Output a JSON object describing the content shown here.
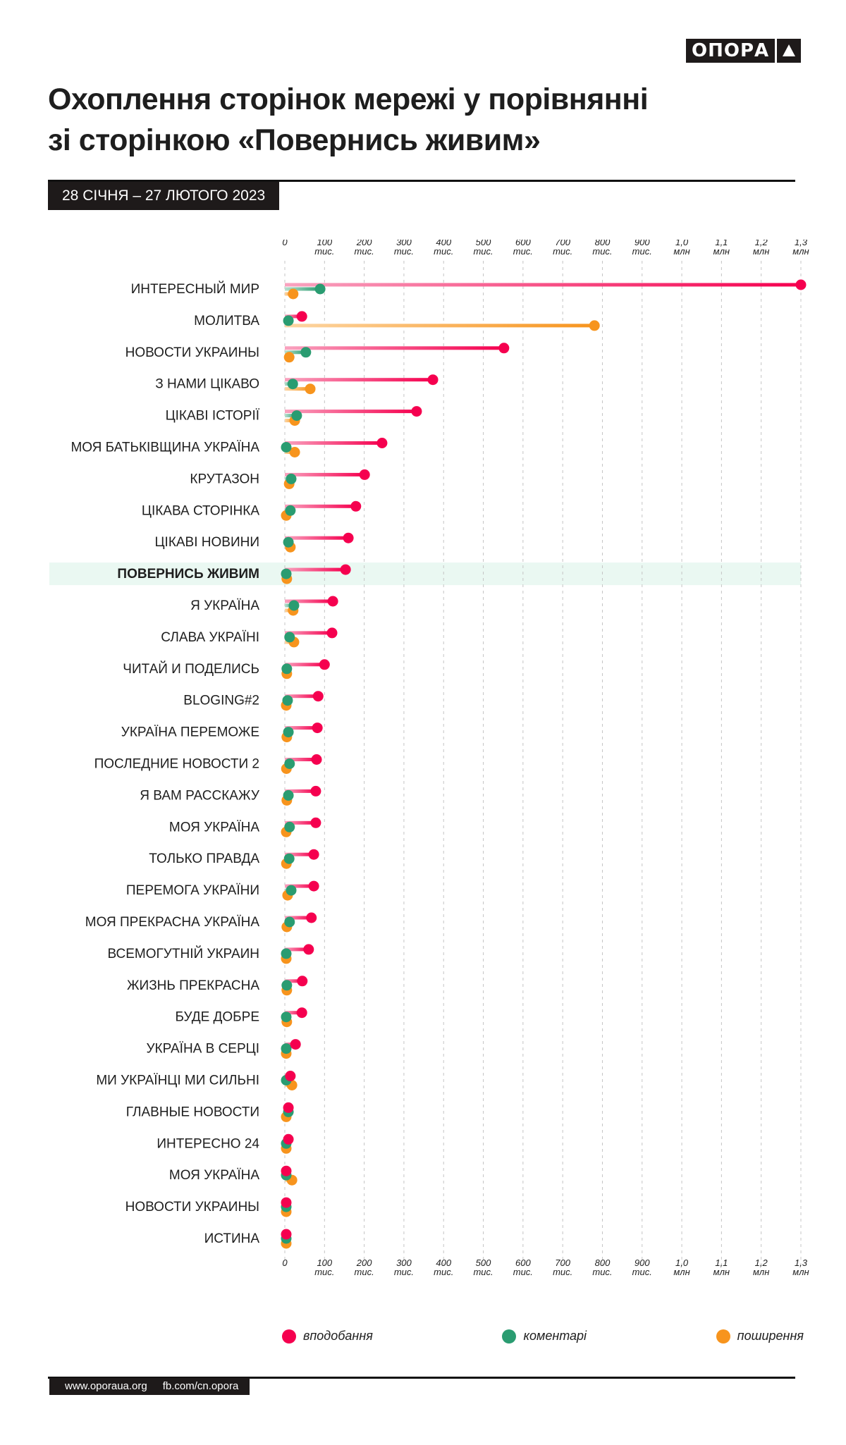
{
  "brand": {
    "logo_text": "ОПОРА",
    "logo_icon": "triangle-up-icon"
  },
  "header": {
    "title_line1": "Охоплення сторінок мережі у порівнянні",
    "title_line2": "зі сторінкою «Повернись живим»",
    "date_range": "28 СІЧНЯ – 27 ЛЮТОГО 2023"
  },
  "colors": {
    "likes": "#f5004f",
    "comments": "#2a9c71",
    "shares": "#f7941d",
    "highlight_row": "#eaf8f2",
    "dark": "#1e1a1a"
  },
  "chart_data": {
    "type": "dot-lollipop",
    "title": "Охоплення сторінок мережі у порівнянні зі сторінкою «Повернись живим»",
    "xlabel": "",
    "xlim": [
      0,
      1300000
    ],
    "grid": true,
    "x_ticks": [
      {
        "value": 0,
        "line1": "0",
        "line2": ""
      },
      {
        "value": 100000,
        "line1": "100",
        "line2": "тис."
      },
      {
        "value": 200000,
        "line1": "200",
        "line2": "тис."
      },
      {
        "value": 300000,
        "line1": "300",
        "line2": "тис."
      },
      {
        "value": 400000,
        "line1": "400",
        "line2": "тис."
      },
      {
        "value": 500000,
        "line1": "500",
        "line2": "тис."
      },
      {
        "value": 600000,
        "line1": "600",
        "line2": "тис."
      },
      {
        "value": 700000,
        "line1": "700",
        "line2": "тис."
      },
      {
        "value": 800000,
        "line1": "800",
        "line2": "тис."
      },
      {
        "value": 900000,
        "line1": "900",
        "line2": "тис."
      },
      {
        "value": 1000000,
        "line1": "1,0",
        "line2": "млн"
      },
      {
        "value": 1100000,
        "line1": "1,1",
        "line2": "млн"
      },
      {
        "value": 1200000,
        "line1": "1,2",
        "line2": "млн"
      },
      {
        "value": 1300000,
        "line1": "1,3",
        "line2": "млн"
      }
    ],
    "legend": {
      "placement": "bottom",
      "items": [
        "вподобання",
        "коментарі",
        "поширення"
      ]
    },
    "highlight": "ПОВЕРНИСЬ ЖИВИМ",
    "categories": [
      "ИНТЕРЕСНЫЙ МИР",
      "МОЛИТВА",
      "НОВОСТИ УКРАИНЫ",
      "З НАМИ ЦІКАВО",
      "ЦІКАВІ ІСТОРІЇ",
      "МОЯ БАТЬКІВЩИНА УКРАЇНА",
      "КРУТАЗОН",
      "ЦІКАВА СТОРІНКА",
      "ЦІКАВІ НОВИНИ",
      "ПОВЕРНИСЬ ЖИВИМ",
      "Я УКРАЇНА",
      "СЛАВА УКРАЇНІ",
      "ЧИТАЙ И ПОДЕЛИСЬ",
      "BLOGING#2",
      "УКРАЇНА ПЕРЕМОЖЕ",
      "ПОСЛЕДНИЕ НОВОСТИ 2",
      "Я ВАМ РАССКАЖУ",
      "МОЯ УКРАЇНА",
      "ТОЛЬКО ПРАВДА",
      "ПЕРЕМОГА УКРАЇНИ",
      "МОЯ ПРЕКРАСНА УКРАЇНА",
      "ВСЕМОГУТНІЙ УКРАИН",
      "ЖИЗНЬ ПРЕКРАСНА",
      "БУДЕ ДОБРЕ",
      "УКРАЇНА В СЕРЦІ",
      "МИ УКРАЇНЦІ МИ СИЛЬНІ",
      "ГЛАВНЫЕ НОВОСТИ",
      "ИНТЕРЕСНО 24",
      "МОЯ УКРАЇНА",
      "НОВОСТИ УКРАИНЫ",
      "ИСТИНА"
    ],
    "series": [
      {
        "name": "вподобання",
        "key": "likes",
        "values": [
          1300000,
          43000,
          552000,
          373000,
          332000,
          245000,
          201000,
          179000,
          160000,
          153000,
          121000,
          119000,
          100000,
          84000,
          82000,
          80000,
          78000,
          78000,
          73000,
          73000,
          67000,
          60000,
          44000,
          43000,
          27000,
          14000,
          9000,
          9000,
          2000,
          1000,
          1000
        ]
      },
      {
        "name": "коментарі",
        "key": "comments",
        "values": [
          89000,
          9000,
          53000,
          20000,
          30000,
          2000,
          16000,
          14000,
          9000,
          2000,
          23000,
          12000,
          5000,
          7000,
          9000,
          12000,
          9000,
          12000,
          11000,
          16000,
          12000,
          2000,
          5000,
          2000,
          2000,
          2000,
          9000,
          2000,
          2000,
          1000,
          1000
        ]
      },
      {
        "name": "поширення",
        "key": "shares",
        "values": [
          21000,
          780000,
          11000,
          64000,
          25000,
          25000,
          11000,
          2000,
          14000,
          5000,
          21000,
          23000,
          5000,
          2000,
          5000,
          4000,
          5000,
          2000,
          4000,
          7000,
          5000,
          2000,
          5000,
          5000,
          2000,
          18000,
          2000,
          2000,
          18000,
          1000,
          1000
        ]
      }
    ]
  },
  "footer": {
    "website": "www.oporaua.org",
    "facebook": "fb.com/cn.opora"
  }
}
